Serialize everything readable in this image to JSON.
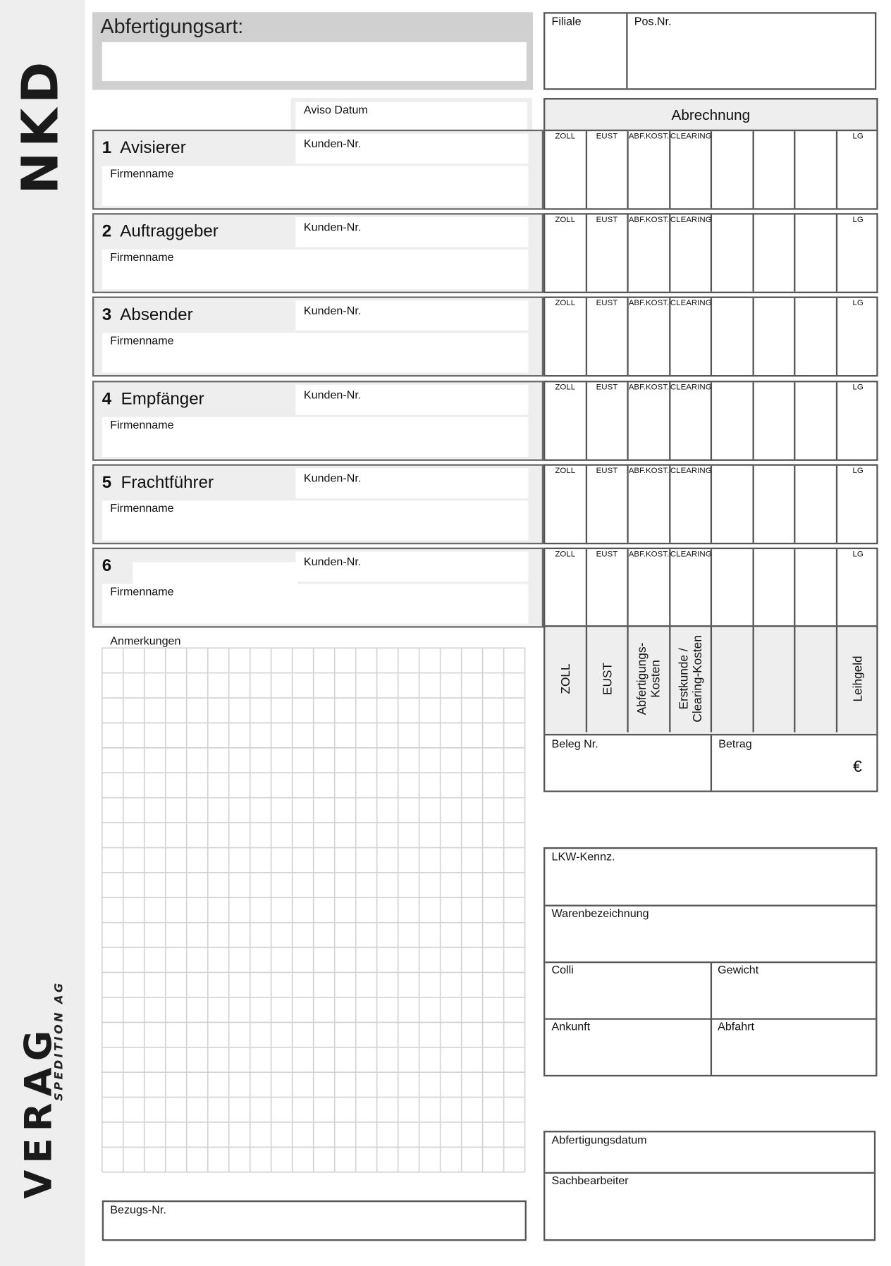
{
  "logos": {
    "top": "NKD",
    "bottom": "VERAG",
    "bottom_sub": "SPEDITION AG"
  },
  "header": {
    "abfertigungsart_label": "Abfertigungsart:",
    "filiale_label": "Filiale",
    "pos_nr_label": "Pos.Nr.",
    "aviso_datum_label": "Aviso Datum"
  },
  "abrechnung": {
    "title": "Abrechnung",
    "columns": [
      "ZOLL",
      "EUST",
      "ABF.KOST.",
      "CLEARING",
      "",
      "",
      "",
      "LG"
    ],
    "totals_headers": [
      "ZOLL",
      "EUST",
      "Abfertigungs-\nKosten",
      "Erstkunde /\nClearing-Kosten",
      "",
      "",
      "",
      "Leihgeld"
    ],
    "beleg_nr_label": "Beleg Nr.",
    "betrag_label": "Betrag",
    "currency": "€"
  },
  "sections": [
    {
      "number": "1",
      "title": "Avisierer",
      "kunden_nr_label": "Kunden-Nr.",
      "firmenname_label": "Firmenname"
    },
    {
      "number": "2",
      "title": "Auftraggeber",
      "kunden_nr_label": "Kunden-Nr.",
      "firmenname_label": "Firmenname"
    },
    {
      "number": "3",
      "title": "Absender",
      "kunden_nr_label": "Kunden-Nr.",
      "firmenname_label": "Firmenname"
    },
    {
      "number": "4",
      "title": "Empfänger",
      "kunden_nr_label": "Kunden-Nr.",
      "firmenname_label": "Firmenname"
    },
    {
      "number": "5",
      "title": "Frachtführer",
      "kunden_nr_label": "Kunden-Nr.",
      "firmenname_label": "Firmenname"
    },
    {
      "number": "6",
      "title": "",
      "kunden_nr_label": "Kunden-Nr.",
      "firmenname_label": "Firmenname"
    }
  ],
  "anmerkungen_label": "Anmerkungen",
  "bezugs_nr_label": "Bezugs-Nr.",
  "transport": {
    "lkw_label": "LKW-Kennz.",
    "ware_label": "Warenbezeichnung",
    "colli_label": "Colli",
    "gewicht_label": "Gewicht",
    "ankunft_label": "Ankunft",
    "abfahrt_label": "Abfahrt"
  },
  "footer": {
    "abfertigungsdatum_label": "Abfertigungsdatum",
    "sachbearbeiter_label": "Sachbearbeiter"
  }
}
